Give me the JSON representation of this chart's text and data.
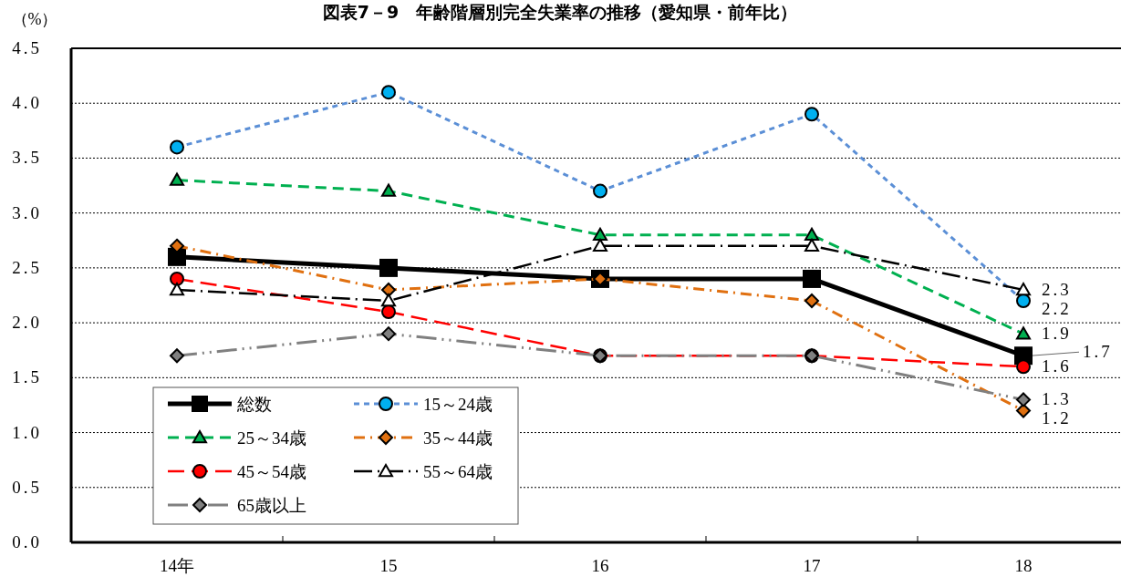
{
  "chart_data": {
    "type": "line",
    "title": "図表7－9　年齢階層別完全失業率の推移（愛知県・前年比）",
    "ylabel": "（%）",
    "categories": [
      "14年",
      "15",
      "16",
      "17",
      "18"
    ],
    "ylim": [
      0,
      4.5
    ],
    "yticks": [
      {
        "value": 0,
        "label": "0.0"
      },
      0.5,
      {
        "value": 1,
        "label": "1.0"
      },
      1.5,
      {
        "value": 2,
        "label": "2.0"
      },
      2.5,
      {
        "value": 3,
        "label": "3.0"
      },
      3.5,
      {
        "value": 4,
        "label": "4.0"
      },
      4.5
    ],
    "grid": "y",
    "legend": "bottom left",
    "series": [
      {
        "name": "総数",
        "color": "#000000",
        "marker": "square",
        "line_style": "solid",
        "values": [
          2.6,
          2.5,
          2.4,
          2.4,
          1.7
        ],
        "value_labels": [
          null,
          null,
          null,
          null,
          "1.7"
        ]
      },
      {
        "name": "15～24歳",
        "color": "#5b8fd6",
        "marker": "circle",
        "line_style": "dashed",
        "values": [
          3.6,
          4.1,
          3.2,
          3.9,
          2.2
        ],
        "value_labels": [
          null,
          null,
          null,
          null,
          "2.2"
        ]
      },
      {
        "name": "25～34歳",
        "color": "#00b050",
        "marker": "triangle",
        "line_style": "dashed",
        "values": [
          3.3,
          3.2,
          2.8,
          2.8,
          1.9
        ],
        "value_labels": [
          null,
          null,
          null,
          null,
          "1.9"
        ]
      },
      {
        "name": "35～44歳",
        "color": "#e07010",
        "marker": "diamond",
        "line_style": "dashed",
        "values": [
          2.7,
          2.3,
          2.4,
          2.2,
          1.2
        ],
        "value_labels": [
          null,
          null,
          null,
          null,
          "1.2"
        ]
      },
      {
        "name": "45～54歳",
        "color": "#ff0000",
        "marker": "circle",
        "line_style": "dashed",
        "values": [
          2.4,
          2.1,
          1.7,
          1.7,
          1.6
        ],
        "value_labels": [
          null,
          null,
          null,
          null,
          "1.6"
        ]
      },
      {
        "name": "55～64歳",
        "color": "#000000",
        "marker": "triangle",
        "line_style": "dashed",
        "values": [
          2.3,
          2.2,
          2.7,
          2.7,
          2.3
        ],
        "value_labels": [
          null,
          null,
          null,
          null,
          "2.3"
        ]
      },
      {
        "name": "65歳以上",
        "color": "#808080",
        "marker": "diamond",
        "line_style": "dashed",
        "values": [
          1.7,
          1.9,
          1.7,
          1.7,
          1.3
        ],
        "value_labels": [
          null,
          null,
          null,
          null,
          "1.3"
        ]
      }
    ]
  }
}
